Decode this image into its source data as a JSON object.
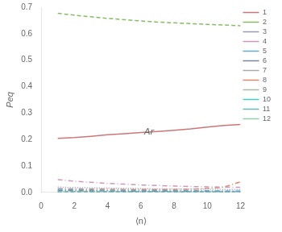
{
  "chart_data": {
    "type": "line",
    "xlabel": "⟨n⟩",
    "ylabel": "Peq",
    "annotations": [
      {
        "text": "Ar",
        "x": 6.2,
        "y": 0.21
      }
    ],
    "x": [
      1,
      2,
      3,
      4,
      5,
      6,
      7,
      8,
      9,
      10,
      11,
      12
    ],
    "series": [
      {
        "name": "1",
        "color": "#cc7777",
        "line_style": "solid",
        "values": [
          0.204,
          0.207,
          0.212,
          0.218,
          0.222,
          0.226,
          0.23,
          0.235,
          0.24,
          0.247,
          0.253,
          0.257
        ]
      },
      {
        "name": "2",
        "color": "#88bb66",
        "line_style": "dashed",
        "values": [
          0.677,
          0.67,
          0.664,
          0.658,
          0.653,
          0.648,
          0.644,
          0.641,
          0.638,
          0.635,
          0.633,
          0.63
        ]
      },
      {
        "name": "3",
        "color": "#9999bb",
        "line_style": "dotted",
        "values": [
          0.02,
          0.018,
          0.017,
          0.016,
          0.015,
          0.014,
          0.013,
          0.013,
          0.012,
          0.012,
          0.011,
          0.011
        ]
      },
      {
        "name": "4",
        "color": "#cc99bb",
        "line_style": "dashdot",
        "values": [
          0.048,
          0.042,
          0.038,
          0.034,
          0.031,
          0.028,
          0.026,
          0.024,
          0.022,
          0.021,
          0.02,
          0.019
        ]
      },
      {
        "name": "5",
        "color": "#66aacc",
        "line_style": "dashdot",
        "values": [
          0.012,
          0.01,
          0.009,
          0.008,
          0.008,
          0.007,
          0.007,
          0.006,
          0.006,
          0.006,
          0.005,
          0.005
        ]
      },
      {
        "name": "6",
        "color": "#778899",
        "line_style": "dashdot",
        "values": [
          0.008,
          0.007,
          0.006,
          0.006,
          0.005,
          0.005,
          0.005,
          0.004,
          0.004,
          0.004,
          0.004,
          0.004
        ]
      },
      {
        "name": "7",
        "color": "#aaaaaa",
        "line_style": "dotted",
        "values": [
          0.004,
          0.004,
          0.003,
          0.003,
          0.003,
          0.003,
          0.003,
          0.003,
          0.003,
          0.003,
          0.003,
          0.003
        ]
      },
      {
        "name": "8",
        "color": "#dd8866",
        "line_style": "dashdot",
        "values": [
          0.014,
          0.013,
          0.012,
          0.012,
          0.011,
          0.011,
          0.011,
          0.011,
          0.012,
          0.015,
          0.02,
          0.04
        ]
      },
      {
        "name": "9",
        "color": "#aabbaa",
        "line_style": "dotted",
        "values": [
          0.006,
          0.005,
          0.005,
          0.004,
          0.004,
          0.004,
          0.004,
          0.004,
          0.004,
          0.004,
          0.004,
          0.004
        ]
      },
      {
        "name": "10",
        "color": "#44cccc",
        "line_style": "dashed",
        "values": [
          0.003,
          0.003,
          0.003,
          0.003,
          0.003,
          0.003,
          0.003,
          0.003,
          0.003,
          0.003,
          0.003,
          0.003
        ]
      },
      {
        "name": "11",
        "color": "#66bbbb",
        "line_style": "dashed",
        "values": [
          0.002,
          0.002,
          0.002,
          0.002,
          0.002,
          0.002,
          0.002,
          0.002,
          0.002,
          0.002,
          0.002,
          0.002
        ]
      },
      {
        "name": "12",
        "color": "#99ccaa",
        "line_style": "dotted",
        "values": [
          0.001,
          0.001,
          0.001,
          0.001,
          0.001,
          0.001,
          0.001,
          0.001,
          0.001,
          0.001,
          0.001,
          0.001
        ]
      }
    ],
    "xlim": [
      0,
      12
    ],
    "ylim": [
      0,
      0.7
    ],
    "xticks": [
      0,
      2,
      4,
      6,
      8,
      10,
      12
    ],
    "yticks": [
      {
        "value": 0,
        "label": "0.0"
      },
      0.1,
      0.2,
      0.3,
      0.4,
      0.5,
      0.6,
      0.7
    ],
    "grid": false,
    "legend": "upper right"
  }
}
